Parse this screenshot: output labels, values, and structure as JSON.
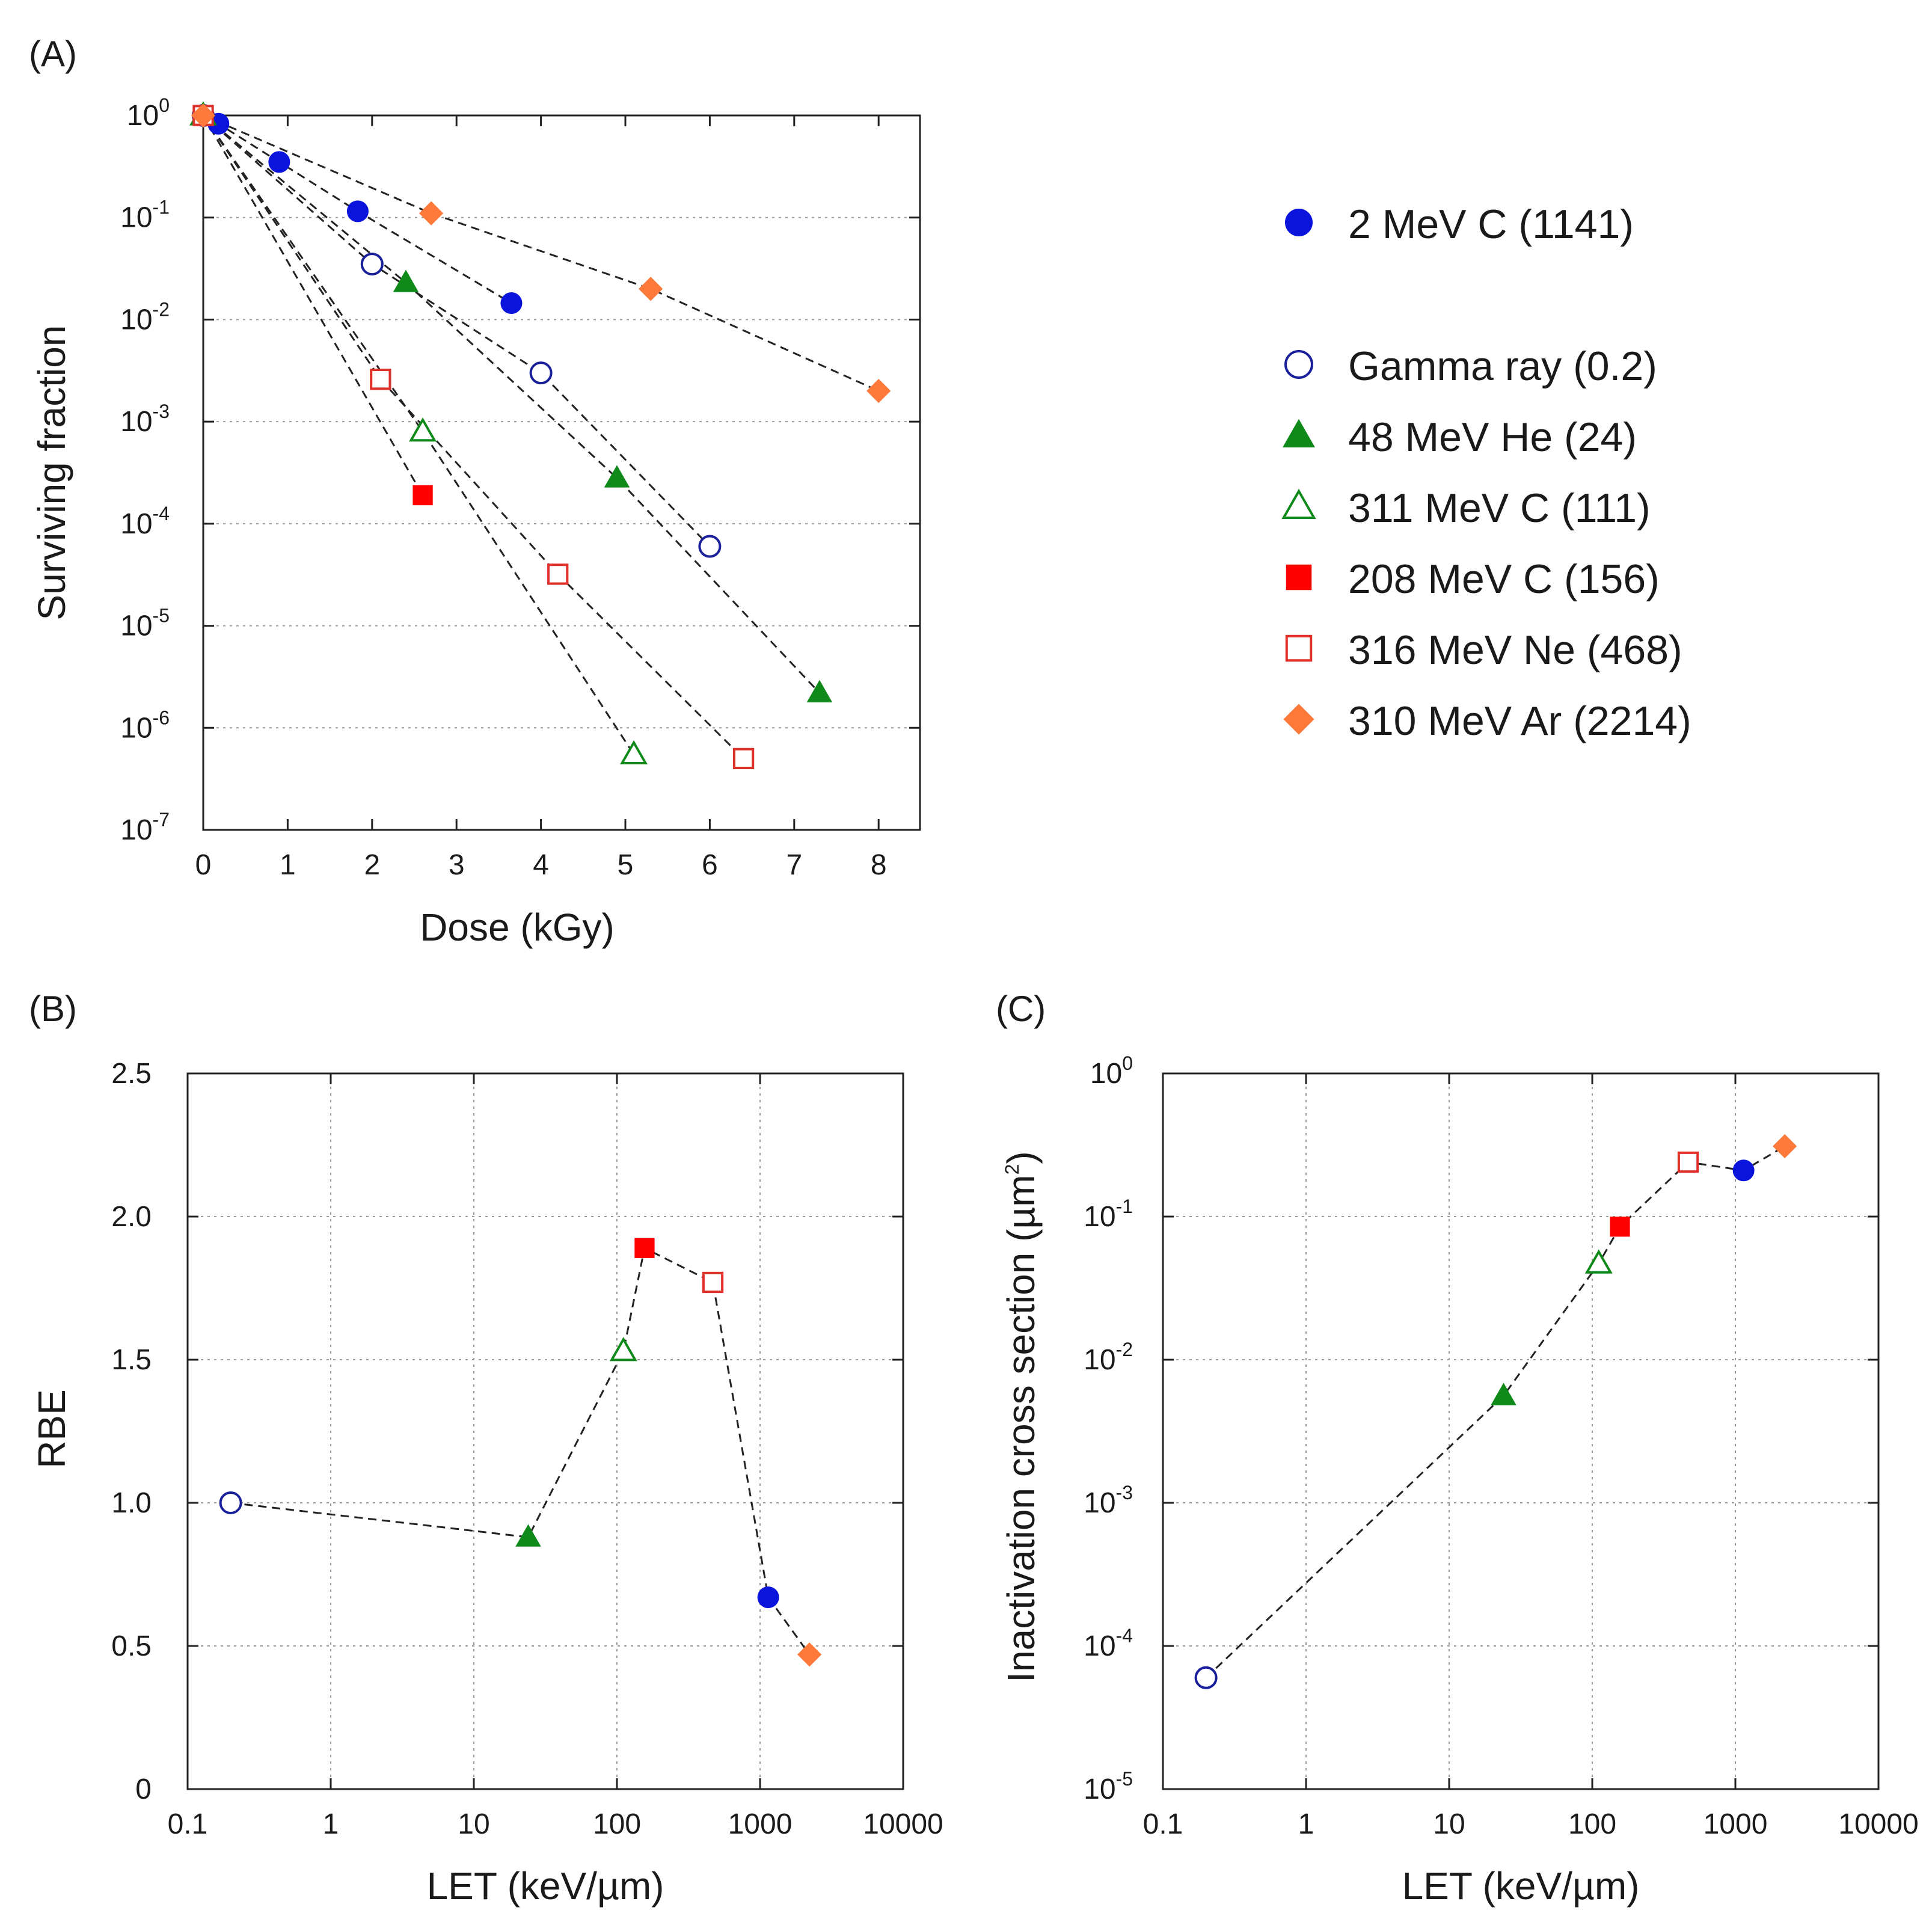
{
  "colors": {
    "carbon_low": "#0a14dc",
    "gamma": "#1a1f9a",
    "helium": "#0f8a1a",
    "carbon_high": "#ff0000",
    "carbon_mid_open": "#0f8a1a",
    "neon": "#e0302a",
    "argon": "#ff7a3a"
  },
  "legend": [
    {
      "key": "c2",
      "label": "2 MeV C (1141)",
      "marker": "circle",
      "filled": true,
      "color": "#0a14dc"
    },
    {
      "key": "gam",
      "label": "Gamma ray (0.2)",
      "marker": "circle",
      "filled": false,
      "color": "#1a1f9a"
    },
    {
      "key": "he",
      "label": "48 MeV He (24)",
      "marker": "triangle",
      "filled": true,
      "color": "#0f8a1a"
    },
    {
      "key": "c311",
      "label": "311 MeV C (111)",
      "marker": "triangle",
      "filled": false,
      "color": "#0f8a1a"
    },
    {
      "key": "c208",
      "label": "208 MeV C (156)",
      "marker": "square",
      "filled": true,
      "color": "#ff0000"
    },
    {
      "key": "ne",
      "label": "316 MeV Ne (468)",
      "marker": "square",
      "filled": false,
      "color": "#e0302a"
    },
    {
      "key": "ar",
      "label": "310 MeV Ar (2214)",
      "marker": "diamond",
      "filled": true,
      "color": "#ff7a3a"
    }
  ],
  "chart_data": [
    {
      "panel": "(A)",
      "type": "scatter",
      "xlabel": "Dose (kGy)",
      "ylabel": "Surviving fraction",
      "xlim": [
        0,
        8.5
      ],
      "ylim": [
        1e-07,
        1
      ],
      "yscale": "log",
      "x_ticks": [
        "0",
        "1",
        "2",
        "3",
        "4",
        "5",
        "6",
        "7",
        "8"
      ],
      "y_ticks": [
        {
          "base": "10",
          "exp": "0"
        },
        {
          "base": "10",
          "exp": "-1"
        },
        {
          "base": "10",
          "exp": "-2"
        },
        {
          "base": "10",
          "exp": "-3"
        },
        {
          "base": "10",
          "exp": "-4"
        },
        {
          "base": "10",
          "exp": "-5"
        },
        {
          "base": "10",
          "exp": "-6"
        },
        {
          "base": "10",
          "exp": "-7"
        }
      ],
      "grid": "horizontal",
      "series": [
        {
          "key": "c2",
          "x": [
            0,
            0.18,
            0.9,
            1.83,
            3.65
          ],
          "y": [
            1,
            0.83,
            0.35,
            0.115,
            0.0145
          ]
        },
        {
          "key": "gam",
          "x": [
            0,
            2.0,
            4.0,
            6.0
          ],
          "y": [
            1,
            0.035,
            0.003,
            6e-05
          ]
        },
        {
          "key": "he",
          "x": [
            0,
            2.4,
            4.9,
            7.3
          ],
          "y": [
            1,
            0.023,
            0.00028,
            2.2e-06
          ]
        },
        {
          "key": "c311",
          "x": [
            0,
            2.6,
            5.1
          ],
          "y": [
            1,
            0.0008,
            5.5e-07
          ]
        },
        {
          "key": "c208",
          "x": [
            0,
            2.6
          ],
          "y": [
            1,
            0.00019
          ]
        },
        {
          "key": "ne",
          "x": [
            0,
            2.1,
            4.2,
            6.4
          ],
          "y": [
            1,
            0.0026,
            3.2e-05,
            5e-07
          ]
        },
        {
          "key": "ar",
          "x": [
            0,
            2.7,
            5.3,
            8.0
          ],
          "y": [
            1,
            0.11,
            0.02,
            0.002
          ]
        }
      ]
    },
    {
      "panel": "(B)",
      "type": "scatter",
      "xlabel": "LET (keV/µm)",
      "ylabel": "RBE",
      "xlim": [
        0.1,
        10000
      ],
      "xscale": "log",
      "ylim": [
        0,
        2.5
      ],
      "x_ticks": [
        "0.1",
        "1",
        "10",
        "100",
        "1000",
        "10000"
      ],
      "y_ticks": [
        "0",
        "0.5",
        "1.0",
        "1.5",
        "2.0",
        "2.5"
      ],
      "grid": "both",
      "points": [
        {
          "key": "gam",
          "x": 0.2,
          "y": 1.0
        },
        {
          "key": "he",
          "x": 24,
          "y": 0.88
        },
        {
          "key": "c311",
          "x": 111,
          "y": 1.53
        },
        {
          "key": "c208",
          "x": 156,
          "y": 1.89
        },
        {
          "key": "ne",
          "x": 468,
          "y": 1.77
        },
        {
          "key": "c2",
          "x": 1141,
          "y": 0.67
        },
        {
          "key": "ar",
          "x": 2214,
          "y": 0.47
        }
      ]
    },
    {
      "panel": "(C)",
      "type": "scatter",
      "xlabel": "LET (keV/µm)",
      "ylabel": "Inactivation cross section (µm2)",
      "xlim": [
        0.1,
        10000
      ],
      "xscale": "log",
      "ylim": [
        1e-05,
        1
      ],
      "yscale": "log",
      "x_ticks": [
        "0.1",
        "1",
        "10",
        "100",
        "1000",
        "10000"
      ],
      "y_ticks": [
        {
          "base": "10",
          "exp": "0"
        },
        {
          "base": "10",
          "exp": "-1"
        },
        {
          "base": "10",
          "exp": "-2"
        },
        {
          "base": "10",
          "exp": "-3"
        },
        {
          "base": "10",
          "exp": "-4"
        },
        {
          "base": "10",
          "exp": "-5"
        }
      ],
      "grid": "both",
      "points": [
        {
          "key": "gam",
          "x": 0.2,
          "y": 6e-05
        },
        {
          "key": "he",
          "x": 24,
          "y": 0.0056
        },
        {
          "key": "c311",
          "x": 111,
          "y": 0.047
        },
        {
          "key": "c208",
          "x": 156,
          "y": 0.085
        },
        {
          "key": "ne",
          "x": 468,
          "y": 0.24
        },
        {
          "key": "c2",
          "x": 1141,
          "y": 0.21
        },
        {
          "key": "ar",
          "x": 2214,
          "y": 0.31
        }
      ]
    }
  ]
}
